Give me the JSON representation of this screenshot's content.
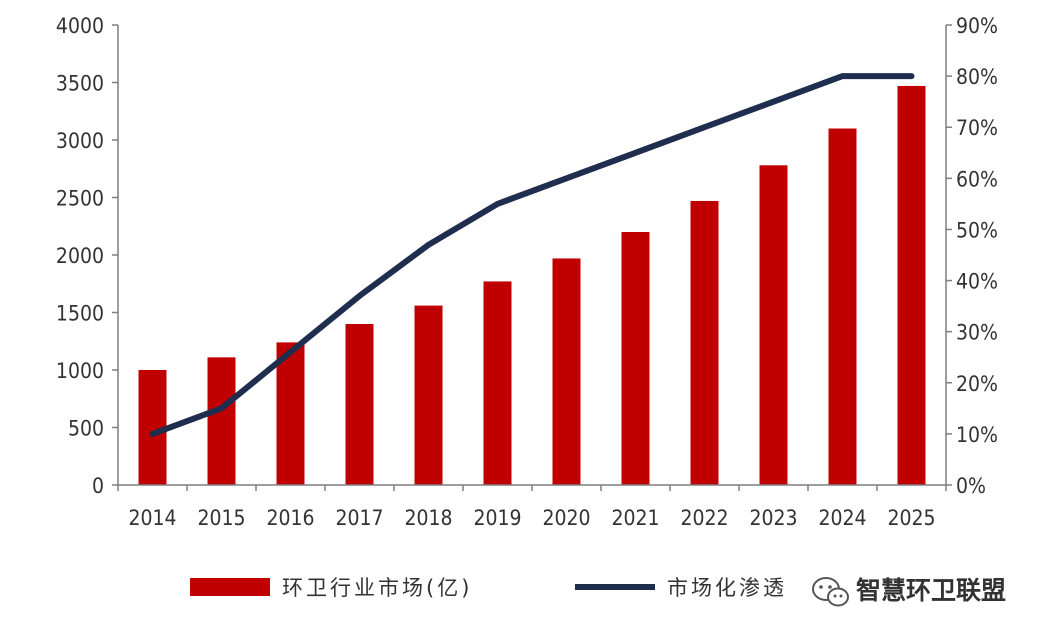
{
  "chart_data": {
    "type": "bar",
    "categories": [
      "2014",
      "2015",
      "2016",
      "2017",
      "2018",
      "2019",
      "2020",
      "2021",
      "2022",
      "2023",
      "2024",
      "2025"
    ],
    "series": [
      {
        "name": "环卫行业市场(亿)",
        "type": "bar",
        "axis": "left",
        "color": "#c00000",
        "values": [
          1000,
          1110,
          1240,
          1400,
          1560,
          1770,
          1970,
          2200,
          2470,
          2780,
          3100,
          3470
        ]
      },
      {
        "name": "市场化渗透",
        "type": "line",
        "axis": "right",
        "color": "#1f2d4e",
        "values": [
          10,
          15,
          26,
          37,
          47,
          55,
          60,
          65,
          70,
          75,
          80,
          80
        ]
      }
    ],
    "y_left": {
      "ylim": [
        0,
        4000
      ],
      "ticks": [
        "0",
        "500",
        "1000",
        "1500",
        "2000",
        "2500",
        "3000",
        "3500",
        "4000"
      ]
    },
    "y_right": {
      "ylim": [
        0,
        90
      ],
      "ticks": [
        "0%",
        "10%",
        "20%",
        "30%",
        "40%",
        "50%",
        "60%",
        "70%",
        "80%",
        "90%"
      ]
    },
    "grid": false,
    "legend_position": "bottom"
  },
  "watermark": {
    "text": "智慧环卫联盟",
    "icon": "wechat-icon"
  }
}
